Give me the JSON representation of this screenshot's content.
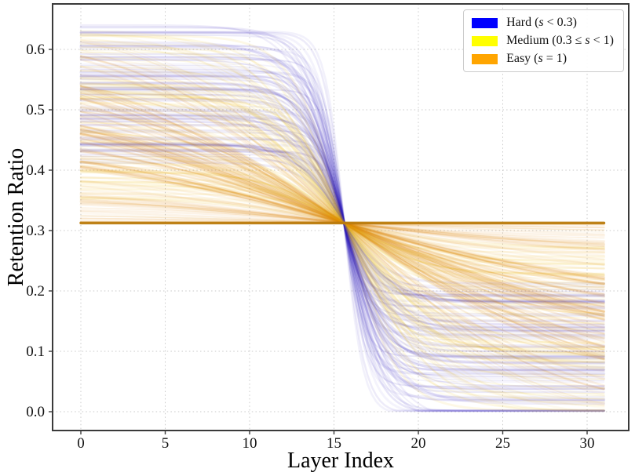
{
  "figure": {
    "xlabel": "Layer Index",
    "ylabel": "Retention Ratio",
    "background": "#ffffff"
  },
  "legend": {
    "position": "upper-right",
    "items": [
      {
        "name": "hard",
        "swatch_color": "#0000ff",
        "label": "Hard (s < 0.3)",
        "label_prefix": "Hard (",
        "label_var": "s",
        "label_suffix": " < 0.3)"
      },
      {
        "name": "medium",
        "swatch_color": "#ffff00",
        "label": "Medium (0.3 ≤ s < 1)",
        "label_prefix": "Medium (0.3 ≤ ",
        "label_var": "s",
        "label_suffix": " < 1)"
      },
      {
        "name": "easy",
        "swatch_color": "#ffa500",
        "label": "Easy (s = 1)",
        "label_prefix": "Easy (",
        "label_var": "s",
        "label_suffix": " = 1)"
      }
    ]
  },
  "chart_data": {
    "type": "line",
    "title": "",
    "xlabel": "Layer Index",
    "ylabel": "Retention Ratio",
    "xlim": [
      -1.7,
      32.5
    ],
    "ylim": [
      -0.032,
      0.676
    ],
    "x_ticks": [
      0,
      5,
      10,
      15,
      20,
      25,
      30
    ],
    "x_tick_labels": [
      "0",
      "5",
      "10",
      "15",
      "20",
      "25",
      "30"
    ],
    "y_ticks": [
      0.0,
      0.1,
      0.2,
      0.3,
      0.4,
      0.5,
      0.6
    ],
    "y_tick_labels": [
      "0.0",
      "0.1",
      "0.2",
      "0.3",
      "0.4",
      "0.5",
      "0.6"
    ],
    "grid": {
      "visible": true,
      "style": "dotted",
      "color": "#c9c9c9"
    },
    "layer_range": [
      0,
      31
    ],
    "crossover_point": {
      "x": 15.6,
      "y": 0.3125
    },
    "uniform_line": {
      "y": 0.3125,
      "color": "#bb7b0d",
      "meaning": "Easy (s = 1): constant retention ratio across all layers"
    },
    "left_envelope": [
      0.3125,
      0.645
    ],
    "right_envelope": [
      0.0,
      0.3125
    ],
    "curve_model": "retention(x) = 0.3125 + A * tanh((15.6 - x) / (2 * tau)); harder samples (blue, s < 0.3) have small tau (steep transition near layer 16), easier samples shallower; s = 1 is the flat line at 0.3125",
    "amplitude_max": 0.33,
    "opacity_range": [
      0.045,
      0.12
    ],
    "line_width_range": [
      1.5,
      3.3
    ],
    "families": [
      {
        "name": "hard",
        "legend": "Hard (s < 0.3)",
        "color": "#2f1cbe",
        "count": 80,
        "tau_range": [
          0.55,
          1.5
        ],
        "amplitude_frac_range": [
          0.3,
          1.0
        ]
      },
      {
        "name": "medium",
        "legend": "Medium (0.3 ≤ s < 1)",
        "color": "#edc117",
        "count": 90,
        "tau_range": [
          1.5,
          4.2
        ],
        "amplitude_frac_range": [
          0.12,
          1.0
        ]
      },
      {
        "name": "easy",
        "legend": "Easy (s = 1)",
        "color": "#e0880a",
        "count": 125,
        "tau_range": [
          4.2,
          10.5
        ],
        "amplitude_frac_range": [
          0.0,
          1.0
        ]
      }
    ]
  },
  "colors": {
    "spine": "#3a3a3a",
    "tick_label": "#111111",
    "background": "#ffffff"
  }
}
